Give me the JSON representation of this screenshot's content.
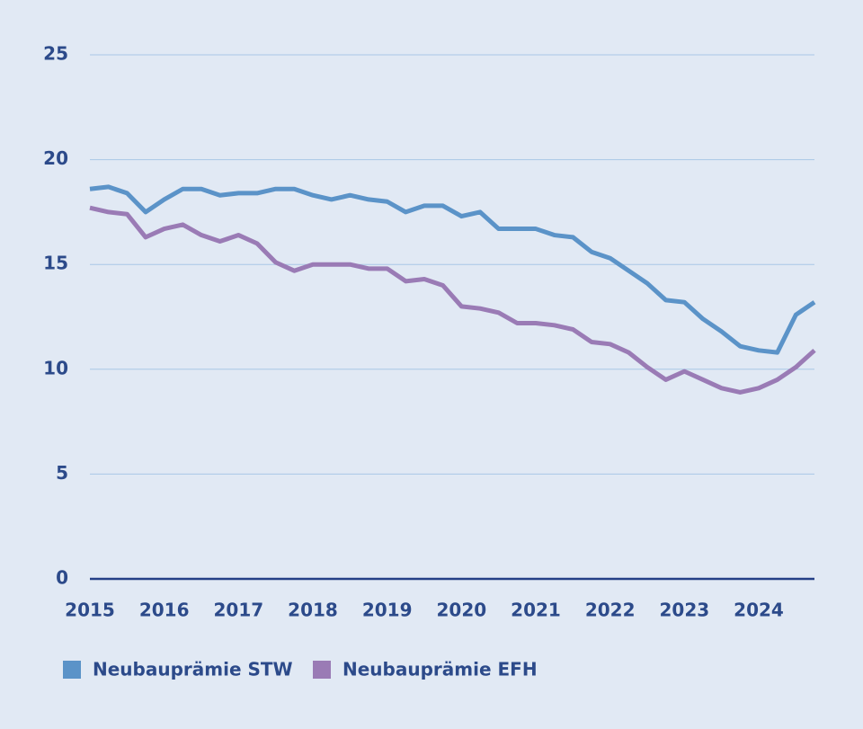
{
  "chart_data": {
    "type": "line",
    "categories": [
      "2015",
      null,
      null,
      null,
      "2016",
      null,
      null,
      null,
      "2017",
      null,
      null,
      null,
      "2018",
      null,
      null,
      null,
      "2019",
      null,
      null,
      null,
      "2020",
      null,
      null,
      null,
      "2021",
      null,
      null,
      null,
      "2022",
      null,
      null,
      null,
      "2023",
      null,
      null,
      null,
      "2024",
      null,
      null,
      null
    ],
    "series": [
      {
        "name": "Neubauprämie STW",
        "color": "#5b93c8",
        "values": [
          18.6,
          18.7,
          18.4,
          17.5,
          18.1,
          18.6,
          18.6,
          18.3,
          18.4,
          18.4,
          18.6,
          18.6,
          18.3,
          18.1,
          18.3,
          18.1,
          18.0,
          17.5,
          17.8,
          17.8,
          17.3,
          17.5,
          16.7,
          16.7,
          16.7,
          16.4,
          16.3,
          15.6,
          15.3,
          14.7,
          14.1,
          13.3,
          13.2,
          12.4,
          11.8,
          11.1,
          10.9,
          10.8,
          12.6,
          13.2
        ]
      },
      {
        "name": "Neubauprämie EFH",
        "color": "#9a7bb5",
        "values": [
          17.7,
          17.5,
          17.4,
          16.3,
          16.7,
          16.9,
          16.4,
          16.1,
          16.4,
          16.0,
          15.1,
          14.7,
          15.0,
          15.0,
          15.0,
          14.8,
          14.8,
          14.2,
          14.3,
          14.0,
          13.0,
          12.9,
          12.7,
          12.2,
          12.2,
          12.1,
          11.9,
          11.3,
          11.2,
          10.8,
          10.1,
          9.5,
          9.9,
          9.5,
          9.1,
          8.9,
          9.1,
          9.5,
          10.1,
          10.9
        ]
      }
    ],
    "ylim": [
      0,
      25
    ],
    "yticks": [
      0,
      5,
      10,
      15,
      20,
      25
    ],
    "grid": true
  }
}
